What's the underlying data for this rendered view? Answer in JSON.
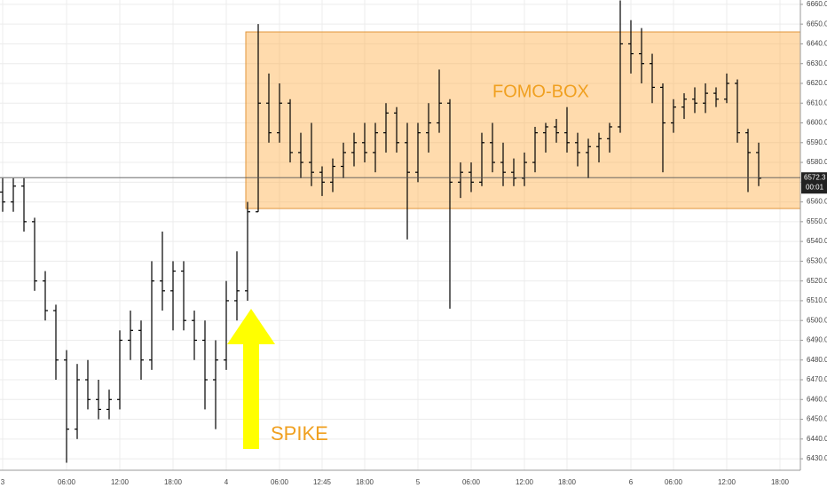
{
  "chart_data": {
    "type": "ohlc",
    "categories": [
      "3",
      null,
      null,
      null,
      null,
      null,
      "06:00",
      null,
      null,
      null,
      null,
      "12:00",
      null,
      null,
      null,
      null,
      "18:00",
      null,
      null,
      null,
      null,
      "4",
      null,
      null,
      null,
      null,
      "06:00",
      null,
      null,
      null,
      "12:45",
      null,
      null,
      null,
      "18:00",
      null,
      null,
      null,
      null,
      "5",
      null,
      null,
      null,
      null,
      "06:00",
      null,
      null,
      null,
      null,
      "12:00",
      null,
      null,
      null,
      "18:00",
      null,
      null,
      null,
      null,
      null,
      "6",
      null,
      null,
      null,
      "06:00",
      null,
      null,
      null,
      null,
      "12:00",
      null,
      null,
      null,
      null,
      "18:00"
    ],
    "open": [
      6565,
      6560,
      6568,
      6550,
      6520,
      6505,
      6480,
      6445,
      6470,
      6460,
      6455,
      6460,
      6490,
      6495,
      6480,
      6520,
      6515,
      6525,
      6500,
      6490,
      6470,
      6480,
      6510,
      6515,
      6555,
      6610,
      6595,
      6610,
      6585,
      6580,
      6575,
      6570,
      6578,
      6585,
      6590,
      6585,
      6595,
      6605,
      6590,
      6575,
      6595,
      6600,
      6610,
      6570,
      6575,
      6570,
      6590,
      6580,
      6575,
      6572,
      6580,
      6595,
      6598,
      6595,
      6590,
      6585,
      6588,
      6592,
      6598,
      6640,
      6635,
      6630,
      6618,
      6600,
      6608,
      6612,
      6610,
      6615,
      6612,
      6620,
      6595,
      6585,
      null,
      null
    ],
    "high": [
      6572,
      6572,
      6572,
      6552,
      6525,
      6508,
      6485,
      6478,
      6480,
      6470,
      6465,
      6495,
      6505,
      6500,
      6530,
      6545,
      6530,
      6530,
      6505,
      6500,
      6490,
      6520,
      6535,
      6560,
      6650,
      6625,
      6620,
      6612,
      6595,
      6600,
      6578,
      6582,
      6590,
      6595,
      6600,
      6600,
      6610,
      6608,
      6600,
      6600,
      6610,
      6627,
      6612,
      6580,
      6580,
      6595,
      6600,
      6590,
      6582,
      6585,
      6598,
      6600,
      6602,
      6608,
      6595,
      6592,
      6595,
      6600,
      6662,
      6652,
      6648,
      6635,
      6620,
      6612,
      6615,
      6618,
      6620,
      6618,
      6625,
      6622,
      6597,
      6590,
      null,
      null
    ],
    "low": [
      6555,
      6555,
      6545,
      6515,
      6500,
      6470,
      6428,
      6440,
      6455,
      6450,
      6450,
      6455,
      6480,
      6470,
      6475,
      6505,
      6495,
      6495,
      6480,
      6455,
      6445,
      6475,
      6500,
      6510,
      6555,
      6590,
      6590,
      6580,
      6572,
      6568,
      6563,
      6565,
      6572,
      6578,
      6580,
      6575,
      6585,
      6585,
      6541,
      6570,
      6585,
      6595,
      6506,
      6562,
      6565,
      6568,
      6575,
      6568,
      6568,
      6568,
      6575,
      6585,
      6590,
      6585,
      6578,
      6572,
      6580,
      6585,
      6595,
      6625,
      6620,
      6610,
      6575,
      6595,
      6602,
      6605,
      6605,
      6608,
      6610,
      6590,
      6565,
      6568,
      null,
      null
    ],
    "close": [
      6560,
      6568,
      6550,
      6520,
      6505,
      6480,
      6445,
      6470,
      6460,
      6455,
      6460,
      6490,
      6495,
      6480,
      6520,
      6515,
      6525,
      6500,
      6490,
      6470,
      6480,
      6510,
      6515,
      6555,
      6610,
      6595,
      6610,
      6585,
      6580,
      6575,
      6570,
      6578,
      6585,
      6590,
      6585,
      6595,
      6605,
      6590,
      6575,
      6595,
      6600,
      6610,
      6570,
      6575,
      6570,
      6590,
      6580,
      6575,
      6572,
      6580,
      6595,
      6598,
      6595,
      6590,
      6585,
      6588,
      6592,
      6598,
      6640,
      6635,
      6630,
      6618,
      6600,
      6608,
      6612,
      6610,
      6615,
      6612,
      6620,
      6595,
      6585,
      6572,
      null,
      null
    ],
    "color": "#000000",
    "ylim": [
      6424.2,
      6662.2
    ],
    "yticks": [
      {
        "value": 6430,
        "label": "6430.0"
      },
      {
        "value": 6440,
        "label": "6440.0"
      },
      {
        "value": 6450,
        "label": "6450.0"
      },
      {
        "value": 6460,
        "label": "6460.0"
      },
      {
        "value": 6470,
        "label": "6470.0"
      },
      {
        "value": 6480,
        "label": "6480.0"
      },
      {
        "value": 6490,
        "label": "6490.0"
      },
      {
        "value": 6500,
        "label": "6500.0"
      },
      {
        "value": 6510,
        "label": "6510.0"
      },
      {
        "value": 6520,
        "label": "6520.0"
      },
      {
        "value": 6530,
        "label": "6530.0"
      },
      {
        "value": 6540,
        "label": "6540.0"
      },
      {
        "value": 6550,
        "label": "6550.0"
      },
      {
        "value": 6560,
        "label": "6560.0"
      },
      {
        "value": 6570,
        "label": "6570.0"
      },
      {
        "value": 6580,
        "label": "6580.0"
      },
      {
        "value": 6590,
        "label": "6590.0"
      },
      {
        "value": 6600,
        "label": "6600.0"
      },
      {
        "value": 6610,
        "label": "6610.0"
      },
      {
        "value": 6620,
        "label": "6620.0"
      },
      {
        "value": 6630,
        "label": "6630.0"
      },
      {
        "value": 6640,
        "label": "6640.0"
      },
      {
        "value": 6650,
        "label": "6650.0"
      },
      {
        "value": 6660,
        "label": "6660.0"
      }
    ],
    "grid": true,
    "last_price": 6572.3,
    "countdown": "00:01",
    "annotations": [
      "FOMO-BOX",
      "SPIKE"
    ]
  }
}
